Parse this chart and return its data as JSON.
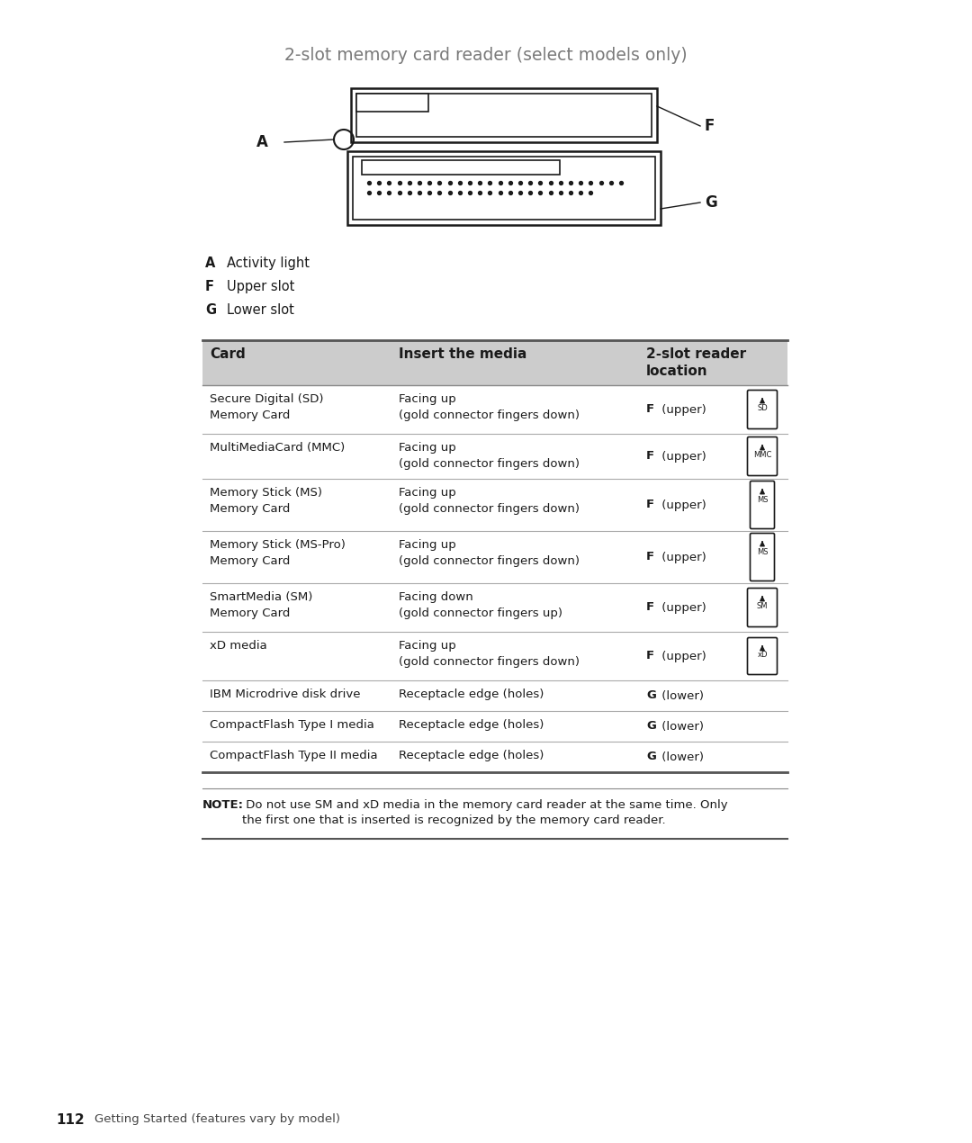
{
  "title": "2-slot memory card reader (select models only)",
  "title_color": "#7a7a7a",
  "bg_color": "#ffffff",
  "legend_items": [
    [
      "A",
      "Activity light"
    ],
    [
      "F",
      "Upper slot"
    ],
    [
      "G",
      "Lower slot"
    ]
  ],
  "table_header": [
    "Card",
    "Insert the media",
    "2-slot reader\nlocation"
  ],
  "table_header_bg": "#cccccc",
  "table_rows": [
    [
      "Secure Digital (SD)\nMemory Card",
      "Facing up\n(gold connector fingers down)",
      "F",
      "(upper)",
      "SD",
      "card_sd"
    ],
    [
      "MultiMediaCard (MMC)",
      "Facing up\n(gold connector fingers down)",
      "F",
      "(upper)",
      "MMC",
      "card_mmc"
    ],
    [
      "Memory Stick (MS)\nMemory Card",
      "Facing up\n(gold connector fingers down)",
      "F",
      "(upper)",
      "MS",
      "card_ms"
    ],
    [
      "Memory Stick (MS-Pro)\nMemory Card",
      "Facing up\n(gold connector fingers down)",
      "F",
      "(upper)",
      "MS",
      "card_ms"
    ],
    [
      "SmartMedia (SM)\nMemory Card",
      "Facing down\n(gold connector fingers up)",
      "F",
      "(upper)",
      "SM",
      "card_sm"
    ],
    [
      "xD media",
      "Facing up\n(gold connector fingers down)",
      "F",
      "(upper)",
      "xD",
      "card_xd"
    ],
    [
      "IBM Microdrive disk drive",
      "Receptacle edge (holes)",
      "G",
      "(lower)",
      "",
      "none"
    ],
    [
      "CompactFlash Type I media",
      "Receptacle edge (holes)",
      "G",
      "(lower)",
      "",
      "none"
    ],
    [
      "CompactFlash Type II media",
      "Receptacle edge (holes)",
      "G",
      "(lower)",
      "",
      "none"
    ]
  ],
  "note_bold": "NOTE:",
  "note_text": " Do not use SM and xD media in the memory card reader at the same time. Only the first one that is inserted is recognized by the memory card reader.",
  "footer_num": "112",
  "footer_text": "Getting Started (features vary by model)"
}
